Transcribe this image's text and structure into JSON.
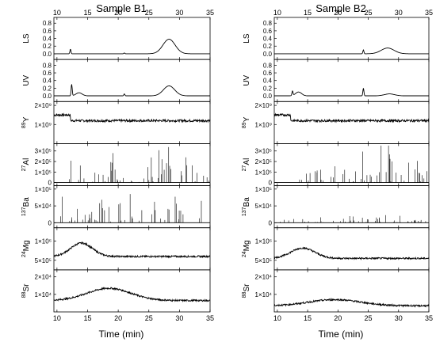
{
  "chart_data": [
    {
      "type": "line",
      "title": "Sample B1",
      "xlabel": "Time (min)",
      "xlim": [
        9.5,
        35
      ],
      "xticks": [
        "10",
        "15",
        "20",
        "25",
        "30",
        "35"
      ],
      "panels": [
        {
          "ylabel": "LS",
          "ylim": [
            -0.15,
            0.95
          ],
          "yticks": [
            "0.0",
            "0.2",
            "0.4",
            "0.6",
            "0.8"
          ],
          "features": [
            {
              "kind": "spike",
              "x": 12.2,
              "y": 0.12
            },
            {
              "kind": "spike",
              "x": 21.0,
              "y": 0.02
            },
            {
              "kind": "hump",
              "x": 28.3,
              "y": 0.38,
              "width": 1.4
            }
          ]
        },
        {
          "ylabel": "UV",
          "ylim": [
            -0.15,
            0.95
          ],
          "yticks": [
            "0.0",
            "0.2",
            "0.4",
            "0.6",
            "0.8"
          ],
          "features": [
            {
              "kind": "spike",
              "x": 12.4,
              "y": 0.3
            },
            {
              "kind": "hump",
              "x": 13.6,
              "y": 0.08,
              "width": 0.7
            },
            {
              "kind": "spike",
              "x": 21.0,
              "y": 0.05
            },
            {
              "kind": "hump",
              "x": 28.3,
              "y": 0.26,
              "width": 1.3
            }
          ]
        },
        {
          "ylabel": "89Y",
          "ylim": [
            0,
            2200000000.0
          ],
          "yticks": [
            "1×10⁹",
            "2×10⁹"
          ],
          "baseline": 1500000000.0,
          "baseline_after": 1200000000.0,
          "step_x": 12.2,
          "noise": 60000000.0
        },
        {
          "ylabel": "27Al",
          "ylim": [
            -30000.0,
            370000.0
          ],
          "yticks": [
            "0",
            "1×10⁵",
            "2×10⁵",
            "3×10⁵"
          ],
          "spikes_region": [
            12,
            35
          ],
          "spike_max": 320000.0
        },
        {
          "ylabel": "137Ba",
          "ylim": [
            -15000.0,
            110000.0
          ],
          "yticks": [
            "0",
            "5×10⁴",
            "1×10⁵"
          ],
          "spikes_region": [
            10,
            35
          ],
          "spike_max": 95000.0
        },
        {
          "ylabel": "24Mg",
          "ylim": [
            250000.0,
            1350000.0
          ],
          "yticks": [
            "5×10⁵",
            "1×10⁶"
          ],
          "features": [
            {
              "kind": "hump",
              "x": 14.0,
              "y": 950000.0,
              "width": 2.5
            }
          ],
          "baseline": 600000.0
        },
        {
          "ylabel": "88Sr",
          "ylim": [
            0,
            24000.0
          ],
          "yticks": [
            "1×10⁴",
            "2×10⁴"
          ],
          "features": [
            {
              "kind": "hump",
              "x": 18.5,
              "y": 13500.0,
              "width": 5.0
            }
          ],
          "baseline": 6500.0
        }
      ]
    },
    {
      "type": "line",
      "title": "Sample B2",
      "xlabel": "Time (min)",
      "xlim": [
        9.5,
        35
      ],
      "xticks": [
        "10",
        "15",
        "20",
        "25",
        "30",
        "35"
      ],
      "panels": [
        {
          "ylabel": "LS",
          "ylim": [
            -0.15,
            0.95
          ],
          "yticks": [
            "0.0",
            "0.2",
            "0.4",
            "0.6",
            "0.8"
          ],
          "features": [
            {
              "kind": "spike",
              "x": 24.2,
              "y": 0.1
            },
            {
              "kind": "hump",
              "x": 28.2,
              "y": 0.15,
              "width": 1.5
            }
          ]
        },
        {
          "ylabel": "UV",
          "ylim": [
            -0.15,
            0.95
          ],
          "yticks": [
            "0.0",
            "0.2",
            "0.4",
            "0.6",
            "0.8"
          ],
          "features": [
            {
              "kind": "spike",
              "x": 12.5,
              "y": 0.12
            },
            {
              "kind": "hump",
              "x": 13.5,
              "y": 0.1,
              "width": 0.7
            },
            {
              "kind": "spike",
              "x": 24.2,
              "y": 0.2
            },
            {
              "kind": "hump",
              "x": 28.5,
              "y": 0.05,
              "width": 1.2
            }
          ]
        },
        {
          "ylabel": "89Y",
          "ylim": [
            0,
            2200000000.0
          ],
          "yticks": [
            "1×10⁹",
            "2×10⁹"
          ],
          "baseline": 1500000000.0,
          "baseline_after": 1200000000.0,
          "step_x": 12.2,
          "noise": 60000000.0
        },
        {
          "ylabel": "27Al",
          "ylim": [
            -30000.0,
            370000.0
          ],
          "yticks": [
            "0",
            "1×10⁵",
            "2×10⁵",
            "3×10⁵"
          ],
          "spikes_region": [
            12,
            35
          ],
          "spike_max": 320000.0
        },
        {
          "ylabel": "137Ba",
          "ylim": [
            -15000.0,
            110000.0
          ],
          "yticks": [
            "0",
            "5×10⁴",
            "1×10⁵"
          ],
          "spikes_region": [
            10,
            35
          ],
          "spike_max": 30000.0
        },
        {
          "ylabel": "24Mg",
          "ylim": [
            250000.0,
            1350000.0
          ],
          "yticks": [
            "5×10⁵",
            "1×10⁶"
          ],
          "features": [
            {
              "kind": "hump",
              "x": 14.2,
              "y": 820000.0,
              "width": 2.8
            }
          ],
          "baseline": 550000.0
        },
        {
          "ylabel": "88Sr",
          "ylim": [
            0,
            24000.0
          ],
          "yticks": [
            "1×10⁴",
            "2×10⁴"
          ],
          "features": [
            {
              "kind": "hump",
              "x": 19.5,
              "y": 7000.0,
              "width": 6.0
            }
          ],
          "baseline": 3500.0
        }
      ]
    }
  ]
}
